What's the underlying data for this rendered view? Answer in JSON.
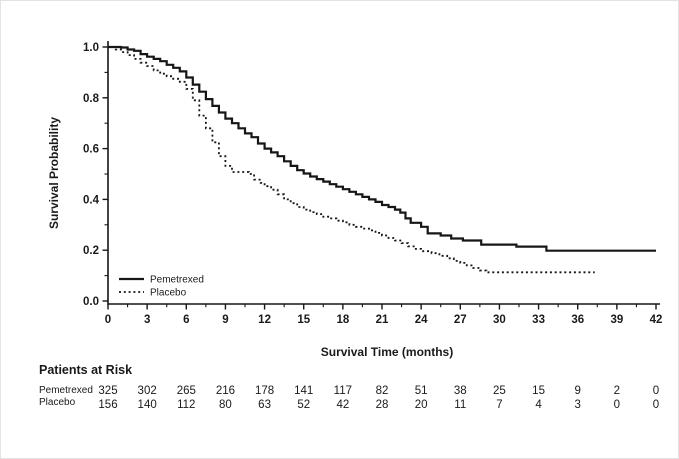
{
  "chart_data": {
    "type": "line",
    "subtype": "kaplan-meier-step",
    "title": "",
    "xlabel": "Survival Time (months)",
    "ylabel": "Survival Probability",
    "xlim": [
      0,
      42
    ],
    "ylim": [
      0.0,
      1.0
    ],
    "x_major_ticks": [
      0,
      3,
      6,
      9,
      12,
      15,
      18,
      21,
      24,
      27,
      30,
      33,
      36,
      39,
      42
    ],
    "x_minor_ticks": [
      1.5,
      4.5,
      7.5,
      10.5,
      13.5,
      16.5,
      19.5,
      22.5,
      25.5,
      28.5,
      31.5,
      34.5,
      37.5,
      40.5
    ],
    "y_major_tick_labels": [
      "0.0",
      "0.2",
      "0.4",
      "0.6",
      "0.8",
      "1.0"
    ],
    "y_major_ticks": [
      0.0,
      0.2,
      0.4,
      0.6,
      0.8,
      1.0
    ],
    "y_minor_ticks": [
      0.1,
      0.3,
      0.5,
      0.7,
      0.9
    ],
    "grid": false,
    "legend_position": "inside-lower-left",
    "line_color": "#161616",
    "series": [
      {
        "name": "Pemetrexed",
        "style": "solid",
        "points": [
          [
            0,
            1.0
          ],
          [
            1,
            0.998
          ],
          [
            1.5,
            0.99
          ],
          [
            2,
            0.985
          ],
          [
            2.5,
            0.972
          ],
          [
            3,
            0.962
          ],
          [
            3.5,
            0.953
          ],
          [
            4,
            0.944
          ],
          [
            4.5,
            0.93
          ],
          [
            5,
            0.918
          ],
          [
            5.5,
            0.904
          ],
          [
            6,
            0.88
          ],
          [
            6.5,
            0.852
          ],
          [
            7,
            0.824
          ],
          [
            7.5,
            0.795
          ],
          [
            8,
            0.768
          ],
          [
            8.5,
            0.742
          ],
          [
            9,
            0.718
          ],
          [
            9.5,
            0.7
          ],
          [
            10,
            0.68
          ],
          [
            10.5,
            0.66
          ],
          [
            11,
            0.645
          ],
          [
            11.5,
            0.62
          ],
          [
            12,
            0.6
          ],
          [
            12.5,
            0.585
          ],
          [
            13,
            0.57
          ],
          [
            13.5,
            0.55
          ],
          [
            14,
            0.532
          ],
          [
            14.5,
            0.515
          ],
          [
            15,
            0.502
          ],
          [
            15.5,
            0.49
          ],
          [
            16,
            0.48
          ],
          [
            16.5,
            0.47
          ],
          [
            17,
            0.46
          ],
          [
            17.5,
            0.45
          ],
          [
            18,
            0.44
          ],
          [
            18.5,
            0.43
          ],
          [
            19,
            0.42
          ],
          [
            19.5,
            0.41
          ],
          [
            20,
            0.4
          ],
          [
            20.5,
            0.39
          ],
          [
            21,
            0.378
          ],
          [
            21.5,
            0.37
          ],
          [
            22,
            0.36
          ],
          [
            22.4,
            0.348
          ],
          [
            22.8,
            0.325
          ],
          [
            23.2,
            0.308
          ],
          [
            24,
            0.292
          ],
          [
            24.5,
            0.266
          ],
          [
            25.5,
            0.258
          ],
          [
            26.3,
            0.246
          ],
          [
            27.2,
            0.238
          ],
          [
            28.6,
            0.222
          ],
          [
            31.3,
            0.214
          ],
          [
            33.6,
            0.198
          ],
          [
            42,
            0.198
          ]
        ]
      },
      {
        "name": "Placebo",
        "style": "dotted",
        "points": [
          [
            0,
            1.0
          ],
          [
            0.6,
            0.99
          ],
          [
            1,
            0.98
          ],
          [
            1.5,
            0.968
          ],
          [
            2,
            0.953
          ],
          [
            2.5,
            0.938
          ],
          [
            3,
            0.925
          ],
          [
            3.5,
            0.908
          ],
          [
            4,
            0.895
          ],
          [
            4.5,
            0.885
          ],
          [
            5,
            0.875
          ],
          [
            5.5,
            0.863
          ],
          [
            6,
            0.835
          ],
          [
            6.5,
            0.79
          ],
          [
            7,
            0.73
          ],
          [
            7.5,
            0.68
          ],
          [
            8,
            0.625
          ],
          [
            8.5,
            0.57
          ],
          [
            9,
            0.532
          ],
          [
            9.5,
            0.508
          ],
          [
            10.8,
            0.5
          ],
          [
            11.2,
            0.478
          ],
          [
            11.7,
            0.465
          ],
          [
            12,
            0.452
          ],
          [
            12.5,
            0.438
          ],
          [
            13,
            0.42
          ],
          [
            13.5,
            0.4
          ],
          [
            14,
            0.385
          ],
          [
            14.5,
            0.37
          ],
          [
            15,
            0.36
          ],
          [
            15.5,
            0.35
          ],
          [
            16,
            0.342
          ],
          [
            16.5,
            0.332
          ],
          [
            17,
            0.325
          ],
          [
            17.5,
            0.316
          ],
          [
            18,
            0.31
          ],
          [
            18.5,
            0.3
          ],
          [
            19,
            0.292
          ],
          [
            19.5,
            0.285
          ],
          [
            20,
            0.278
          ],
          [
            20.5,
            0.268
          ],
          [
            21,
            0.258
          ],
          [
            21.5,
            0.248
          ],
          [
            22,
            0.238
          ],
          [
            22.5,
            0.228
          ],
          [
            23,
            0.215
          ],
          [
            23.5,
            0.205
          ],
          [
            24,
            0.196
          ],
          [
            24.8,
            0.188
          ],
          [
            25.4,
            0.178
          ],
          [
            26,
            0.168
          ],
          [
            26.5,
            0.158
          ],
          [
            27,
            0.15
          ],
          [
            27.5,
            0.14
          ],
          [
            28,
            0.13
          ],
          [
            28.5,
            0.12
          ],
          [
            29,
            0.113
          ],
          [
            37.3,
            0.113
          ]
        ]
      }
    ]
  },
  "at_risk": {
    "title": "Patients at Risk",
    "time_points": [
      0,
      3,
      6,
      9,
      12,
      15,
      18,
      21,
      24,
      27,
      30,
      33,
      36,
      39,
      42
    ],
    "rows": [
      {
        "label": "Pemetrexed",
        "values": [
          325,
          302,
          265,
          216,
          178,
          141,
          117,
          82,
          51,
          38,
          25,
          15,
          9,
          2,
          0
        ]
      },
      {
        "label": "Placebo",
        "values": [
          156,
          140,
          112,
          80,
          63,
          52,
          42,
          28,
          20,
          11,
          7,
          4,
          3,
          0,
          0
        ]
      }
    ]
  },
  "colors": {
    "line": "#161616",
    "text": "#1a1a1a",
    "background": "#ffffff"
  }
}
